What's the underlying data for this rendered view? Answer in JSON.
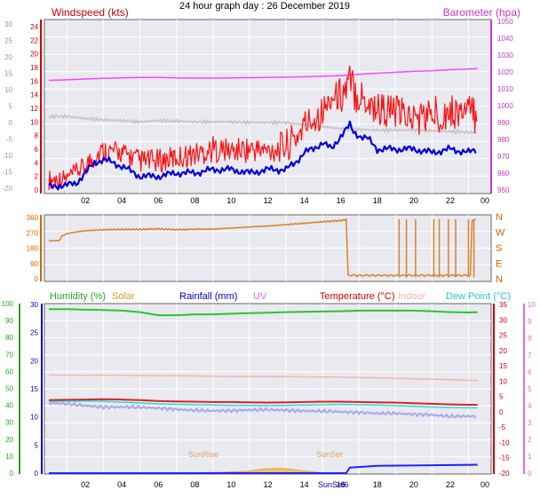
{
  "page_title": "24 hour graph day : 26 December 2019",
  "colors": {
    "panel_bg": "#e9e9f0",
    "grid": "#ffffff",
    "windspeed": "#ff1111",
    "windspeed_avg": "#0000dd",
    "barometer": "#ff44ff",
    "pressure_grey": "#c8c8c8",
    "direction": "#d9822b",
    "humidity": "#22cc22",
    "solar": "#e0b030",
    "rainfall": "#2222ff",
    "temperature": "#dd2222",
    "indoor": "#f4b8a8",
    "dew_point": "#33dddd",
    "apparent": "#aaaaee"
  },
  "chart_data": [
    {
      "type": "line",
      "title": "Windspeed / Barometer",
      "legend_left": "Windspeed (kts)",
      "legend_right": "Barometer (hpa)",
      "x_ticks": [
        "02",
        "04",
        "06",
        "08",
        "10",
        "12",
        "14",
        "16",
        "18",
        "20",
        "22",
        "00"
      ],
      "left_axis_outer": [
        "30",
        "25",
        "20",
        "15",
        "10",
        "5",
        "0",
        "-5",
        "-10",
        "-15",
        "-20"
      ],
      "left_axis_inner": [
        "24",
        "22",
        "20",
        "18",
        "16",
        "14",
        "12",
        "10",
        "8",
        "6",
        "4",
        "2",
        "0"
      ],
      "right_axis": [
        "1050",
        "1040",
        "1030",
        "1020",
        "1010",
        "1000",
        "990",
        "980",
        "970",
        "960",
        "950"
      ],
      "ylim_windspeed": [
        0,
        24
      ],
      "ylim_barometer": [
        956,
        1052
      ],
      "series": [
        {
          "name": "Windspeed (kts)",
          "style": "gust",
          "x": [
            0,
            1,
            2,
            2.5,
            3,
            4,
            5,
            6,
            7,
            8,
            9,
            10,
            11,
            12,
            13,
            13.5,
            14,
            15,
            15.5,
            16,
            16.5,
            17,
            18,
            19,
            20,
            21,
            22,
            23,
            23.5
          ],
          "low": [
            0,
            0.5,
            2,
            3,
            4,
            4,
            2.5,
            2.5,
            3,
            3.5,
            4,
            4,
            4,
            4,
            4,
            5,
            7,
            9,
            12,
            11,
            12,
            11,
            9,
            9,
            8,
            8,
            9,
            9,
            8
          ],
          "high": [
            3,
            3,
            5,
            7,
            7.5,
            7,
            6,
            6,
            6.5,
            7,
            8,
            7.5,
            8,
            7.5,
            9,
            10,
            12,
            14,
            15,
            17,
            19,
            17,
            15,
            14,
            13,
            14,
            14,
            14,
            14
          ]
        },
        {
          "name": "Average windspeed",
          "x": [
            0,
            1,
            1.5,
            2,
            2.5,
            3,
            4,
            5,
            6,
            7,
            8,
            9,
            10,
            11,
            12,
            13,
            13.5,
            14,
            14.5,
            15,
            15.5,
            16,
            16.5,
            16.7,
            17,
            17.5,
            18,
            19,
            20,
            21,
            22,
            23,
            23.5
          ],
          "y": [
            0.5,
            0.7,
            1,
            2.5,
            4,
            4.5,
            3.5,
            2,
            2,
            2.5,
            2.5,
            3,
            3,
            2.5,
            3,
            3,
            4,
            5.5,
            6,
            7,
            6,
            8,
            9.5,
            8.5,
            8,
            7.5,
            6,
            6,
            6,
            5.5,
            6,
            5.5,
            6
          ]
        },
        {
          "name": "Barometer (hpa)",
          "axis": "right",
          "x": [
            0,
            1,
            2,
            3,
            4,
            5,
            6,
            7,
            8,
            9,
            10,
            11,
            12,
            13,
            14,
            15,
            16,
            17,
            18,
            19,
            20,
            21,
            22,
            23,
            23.5
          ],
          "y": [
            1015,
            1015.3,
            1015.8,
            1016.2,
            1016.5,
            1016.7,
            1016.7,
            1016.5,
            1016.3,
            1016.3,
            1016.4,
            1016.6,
            1016.7,
            1016.9,
            1017.1,
            1017.4,
            1017.8,
            1018.5,
            1019.2,
            1019.8,
            1020.3,
            1020.7,
            1021.3,
            1021.7,
            1022
          ]
        },
        {
          "name": "Pressure trace",
          "x": [
            0,
            1,
            2,
            3,
            4,
            5,
            6,
            7,
            8,
            9,
            10,
            11,
            12,
            13,
            14,
            15,
            16,
            17,
            18,
            19,
            20,
            21,
            22,
            23,
            23.5
          ],
          "y": [
            10.8,
            10.8,
            10.5,
            10.3,
            10.2,
            10,
            10.2,
            10.1,
            10,
            10,
            10,
            9.9,
            9.9,
            9.9,
            9.6,
            9.3,
            9,
            8.9,
            8.8,
            8.8,
            8.8,
            8.7,
            8.6,
            8.5,
            8.4
          ]
        }
      ]
    },
    {
      "type": "line",
      "title": "Wind direction",
      "left_axis": [
        "360",
        "270",
        "180",
        "90",
        "0"
      ],
      "right_axis": [
        "N",
        "W",
        "S",
        "E",
        "N"
      ],
      "ylim": [
        0,
        360
      ],
      "series": [
        {
          "name": "Wind direction",
          "x": [
            0,
            0.6,
            0.7,
            1,
            1.5,
            2,
            3,
            4,
            5,
            6,
            7,
            8,
            9,
            10,
            11,
            12,
            13,
            14,
            15,
            16,
            16.3,
            16.4,
            17,
            18,
            18.5,
            19,
            20,
            21,
            22,
            23,
            23.2,
            23.3,
            23.5
          ],
          "y": [
            222,
            225,
            250,
            265,
            275,
            282,
            288,
            290,
            290,
            293,
            288,
            291,
            292,
            298,
            304,
            310,
            318,
            326,
            335,
            342,
            348,
            20,
            25,
            20,
            20,
            18,
            12,
            15,
            15,
            12,
            340,
            348,
            350
          ]
        }
      ]
    },
    {
      "type": "line",
      "title": "Humidity / Rainfall / Temperature",
      "legend": [
        "Humidity (%)",
        "Solar",
        "Rainfall (mm)",
        "UV",
        "Temperature (°C)",
        "Indoor",
        "Dew Point (°C)"
      ],
      "annotations": [
        "SunRise",
        "SunSet",
        "SunSet6"
      ],
      "x_ticks": [
        "02",
        "04",
        "06",
        "08",
        "10",
        "12",
        "14",
        "16",
        "18",
        "20",
        "22",
        "00"
      ],
      "humidity_axis": [
        "100",
        "90",
        "80",
        "70",
        "60",
        "50",
        "40",
        "30",
        "20",
        "10",
        "0"
      ],
      "rain_axis": [
        "30",
        "25",
        "20",
        "15",
        "10",
        "5",
        "0"
      ],
      "temp_axis_right": [
        "35",
        "30",
        "25",
        "20",
        "15",
        "10",
        "5",
        "0",
        "-5",
        "-10",
        "-15",
        "-20"
      ],
      "uv_axis_right": [
        "10",
        "9",
        "8",
        "7",
        "6",
        "5",
        "4",
        "3",
        "2",
        "1",
        "0"
      ],
      "ylim_temperature": [
        -20,
        35
      ],
      "series": [
        {
          "name": "Humidity (%)",
          "x": [
            0,
            1,
            2,
            3,
            4,
            5,
            6,
            7,
            8,
            9,
            10,
            11,
            12,
            13,
            14,
            15,
            16,
            17,
            18,
            19,
            20,
            21,
            22,
            23,
            23.5
          ],
          "y": [
            33.5,
            33.5,
            33.3,
            33.2,
            33.0,
            32.5,
            31.5,
            31.5,
            31.8,
            31.8,
            32.0,
            32.2,
            32.3,
            32.5,
            32.6,
            32.7,
            32.8,
            33.0,
            33.0,
            33.0,
            33.0,
            32.8,
            32.5,
            32.4,
            32.5
          ]
        },
        {
          "name": "Indoor",
          "x": [
            0,
            2,
            4,
            6,
            8,
            10,
            12,
            14,
            16,
            18,
            20,
            22,
            23.5
          ],
          "y": [
            12,
            11.9,
            11.9,
            11.8,
            11.7,
            11.5,
            11.5,
            11.4,
            11.3,
            11.1,
            10.8,
            10.5,
            10.2
          ]
        },
        {
          "name": "Temperature (°C)",
          "x": [
            0,
            1,
            2,
            3,
            4,
            5,
            6,
            7,
            8,
            9,
            10,
            11,
            12,
            13,
            14,
            15,
            16,
            17,
            18,
            19,
            20,
            21,
            22,
            23,
            23.5
          ],
          "y": [
            3.8,
            3.9,
            4.0,
            4.1,
            4.0,
            3.8,
            3.5,
            3.4,
            3.3,
            3.2,
            3.2,
            3.1,
            3.0,
            3.1,
            3.2,
            3.3,
            3.3,
            3.2,
            3.1,
            3.0,
            2.8,
            2.6,
            2.4,
            2.3,
            2.3
          ]
        },
        {
          "name": "Dew Point (°C)",
          "x": [
            0,
            1,
            2,
            3,
            4,
            5,
            6,
            7,
            8,
            9,
            10,
            11,
            12,
            13,
            14,
            15,
            16,
            17,
            18,
            19,
            20,
            21,
            22,
            23,
            23.5
          ],
          "y": [
            3.4,
            3.5,
            3.5,
            3.4,
            3.2,
            2.9,
            2.6,
            2.4,
            2.3,
            2.2,
            2.1,
            2.1,
            2.0,
            2.1,
            2.2,
            2.3,
            2.4,
            2.3,
            2.2,
            2.0,
            1.8,
            1.6,
            1.4,
            1.3,
            1.3
          ]
        },
        {
          "name": "Apparent",
          "x": [
            0,
            1,
            2,
            3,
            4,
            5,
            6,
            7,
            8,
            9,
            10,
            11,
            12,
            13,
            14,
            15,
            16,
            17,
            18,
            19,
            20,
            21,
            22,
            23,
            23.5
          ],
          "y": [
            2.8,
            2.6,
            2.0,
            1.5,
            1.6,
            1.5,
            1.2,
            0.8,
            0.5,
            0.3,
            0.4,
            0.6,
            0.7,
            0.5,
            0.3,
            0.2,
            0.0,
            -0.2,
            -0.5,
            -0.5,
            -0.8,
            -1.0,
            -1.5,
            -1.4,
            -1.6
          ]
        },
        {
          "name": "Rainfall (mm)",
          "x": [
            0,
            10,
            16.3,
            16.5,
            18,
            23.5
          ],
          "y": [
            0,
            0,
            0,
            1,
            1.3,
            1.5
          ]
        },
        {
          "name": "Solar",
          "style": "area",
          "x": [
            7.5,
            8.5,
            9.5,
            10.5,
            11.5,
            12.2,
            12.5,
            13,
            13.5,
            14,
            15,
            15.5
          ],
          "y": [
            0,
            0.05,
            0.1,
            0.15,
            0.3,
            0.5,
            0.45,
            0.4,
            0.35,
            0.2,
            0.05,
            0
          ]
        }
      ]
    }
  ]
}
